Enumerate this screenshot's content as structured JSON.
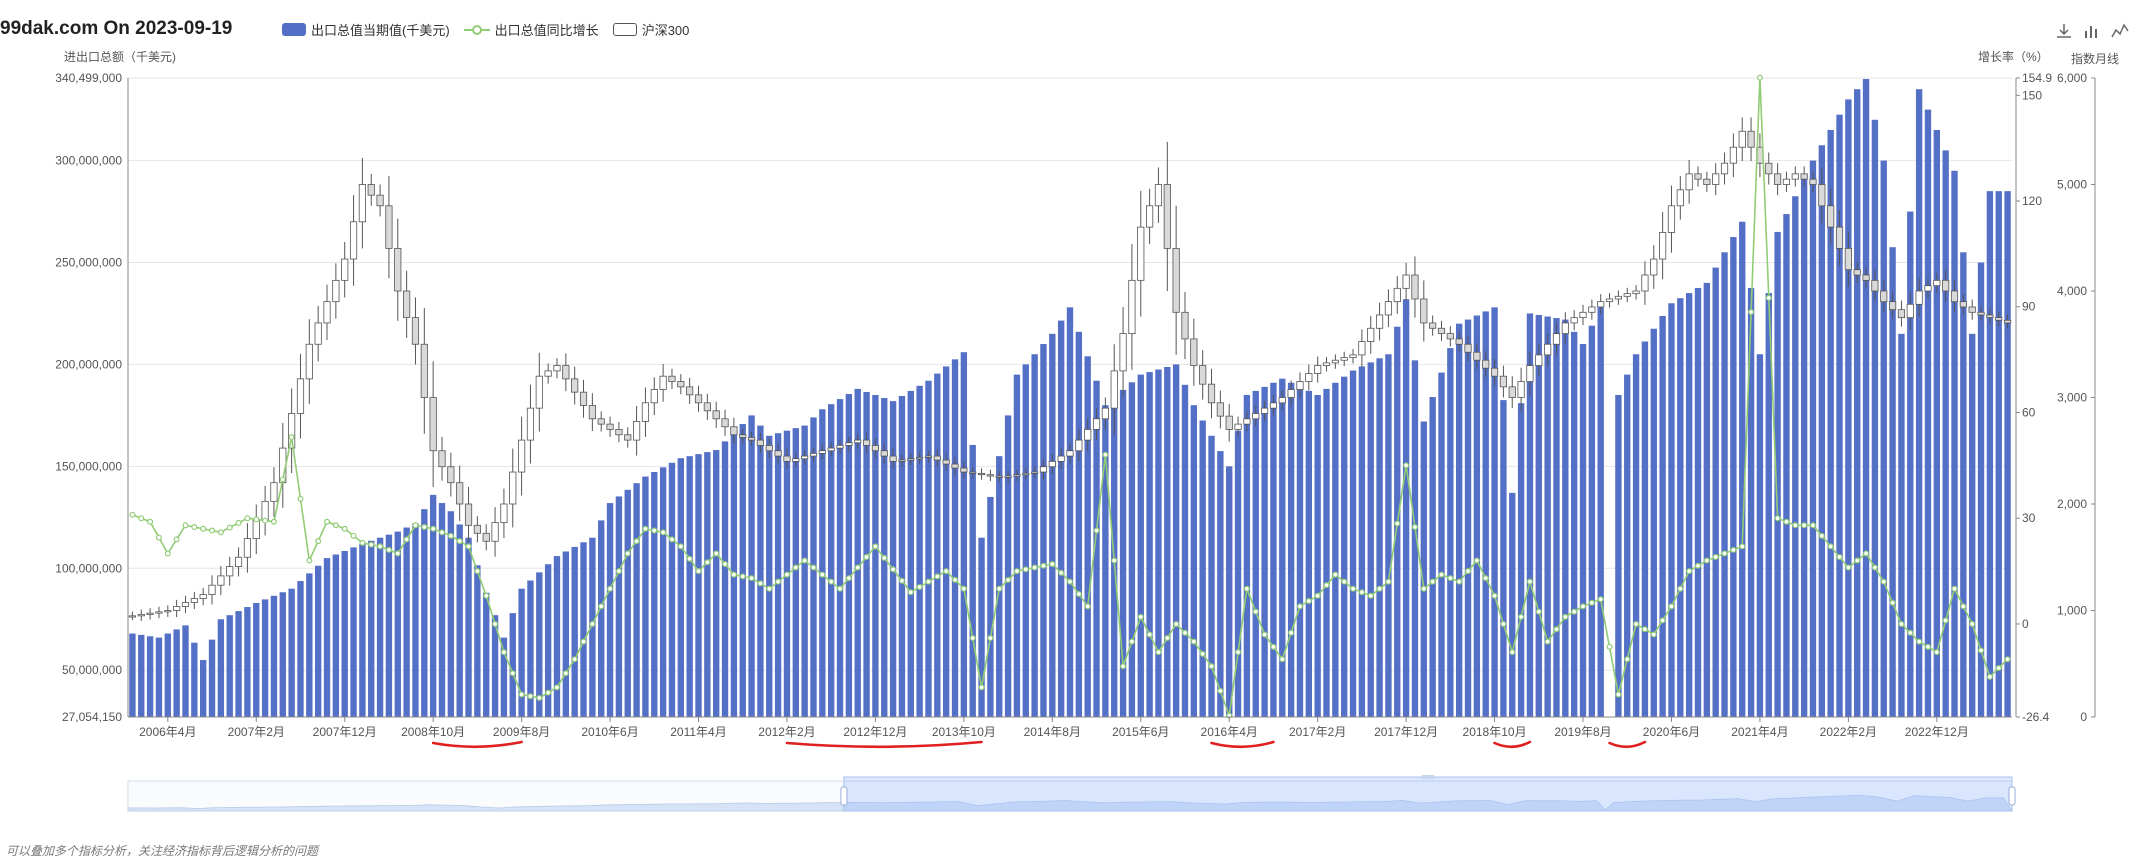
{
  "header": {
    "title": "99dak.com On 2023-09-19",
    "legend": [
      {
        "label": "出口总值当期值(千美元)",
        "color": "#5470c6",
        "kind": "bar"
      },
      {
        "label": "出口总值同比增长",
        "color": "#91cc75",
        "kind": "line"
      },
      {
        "label": "沪深300",
        "color": "#555555",
        "kind": "candle"
      }
    ],
    "toolbox": [
      "download-icon",
      "bar-chart-icon",
      "line-chart-icon"
    ],
    "right_label": "指数月线"
  },
  "footnote": "可以叠加多个指标分析，关注经济指标背后逻辑分析的问题",
  "colors": {
    "bar": "#5470c6",
    "line": "#91cc75",
    "candle": "#555555",
    "annotation": "#e02020",
    "grid": "#e6e6e6"
  },
  "chart_data": {
    "type": "bar",
    "y_left": {
      "label": "进出口总额（千美元)",
      "min": 27054150,
      "max": 340499000,
      "ticks": [
        "27,054,150",
        "50,000,000",
        "100,000,000",
        "150,000,000",
        "200,000,000",
        "250,000,000",
        "300,000,000",
        "340,499,000"
      ]
    },
    "y_mid": {
      "label": "增长率（%）",
      "min": -26.4,
      "max": 154.9,
      "ticks": [
        "-26.4",
        "0",
        "30",
        "60",
        "90",
        "120",
        "150",
        "154.9"
      ]
    },
    "y_right": {
      "min": 0,
      "max": 6000,
      "ticks": [
        "0",
        "1,000",
        "2,000",
        "3,000",
        "4,000",
        "5,000",
        "6,000"
      ]
    },
    "x_ticks": [
      "2006年4月",
      "2007年2月",
      "2007年12月",
      "2008年10月",
      "2009年8月",
      "2010年6月",
      "2011年4月",
      "2012年2月",
      "2012年12月",
      "2013年10月",
      "2014年8月",
      "2015年6月",
      "2016年4月",
      "2017年2月",
      "2017年12月",
      "2018年10月",
      "2019年8月",
      "2020年6月",
      "2021年4月",
      "2022年2月",
      "2022年12月"
    ],
    "x_tick_positions": [
      4,
      14,
      24,
      34,
      44,
      54,
      64,
      74,
      84,
      94,
      104,
      114,
      124,
      134,
      144,
      154,
      164,
      174,
      184,
      194,
      204
    ],
    "n_points": 213,
    "bar_keypoints": [
      [
        0,
        68
      ],
      [
        3,
        66
      ],
      [
        6,
        72
      ],
      [
        8,
        55
      ],
      [
        10,
        75
      ],
      [
        14,
        83
      ],
      [
        18,
        90
      ],
      [
        22,
        105
      ],
      [
        26,
        112
      ],
      [
        30,
        118
      ],
      [
        32,
        122
      ],
      [
        34,
        136
      ],
      [
        36,
        128
      ],
      [
        38,
        115
      ],
      [
        40,
        88
      ],
      [
        42,
        66
      ],
      [
        44,
        90
      ],
      [
        48,
        106
      ],
      [
        52,
        115
      ],
      [
        54,
        132
      ],
      [
        58,
        145
      ],
      [
        62,
        154
      ],
      [
        66,
        158
      ],
      [
        70,
        175
      ],
      [
        72,
        165
      ],
      [
        76,
        170
      ],
      [
        78,
        178
      ],
      [
        82,
        188
      ],
      [
        86,
        182
      ],
      [
        90,
        192
      ],
      [
        94,
        206
      ],
      [
        96,
        115
      ],
      [
        100,
        195
      ],
      [
        104,
        215
      ],
      [
        106,
        228
      ],
      [
        110,
        180
      ],
      [
        114,
        195
      ],
      [
        118,
        200
      ],
      [
        120,
        180
      ],
      [
        124,
        150
      ],
      [
        126,
        185
      ],
      [
        130,
        193
      ],
      [
        134,
        185
      ],
      [
        138,
        197
      ],
      [
        142,
        205
      ],
      [
        144,
        232
      ],
      [
        146,
        172
      ],
      [
        150,
        220
      ],
      [
        154,
        228
      ],
      [
        156,
        137
      ],
      [
        158,
        225
      ],
      [
        162,
        222
      ],
      [
        164,
        210
      ],
      [
        166,
        228
      ],
      [
        167,
        27
      ],
      [
        168,
        185
      ],
      [
        170,
        205
      ],
      [
        174,
        230
      ],
      [
        178,
        240
      ],
      [
        182,
        270
      ],
      [
        184,
        205
      ],
      [
        186,
        265
      ],
      [
        190,
        300
      ],
      [
        194,
        330
      ],
      [
        196,
        340
      ],
      [
        198,
        300
      ],
      [
        200,
        215
      ],
      [
        202,
        335
      ],
      [
        206,
        295
      ],
      [
        208,
        215
      ],
      [
        210,
        285
      ],
      [
        212,
        285
      ]
    ],
    "growth_keypoints": [
      [
        0,
        31
      ],
      [
        2,
        29
      ],
      [
        4,
        20
      ],
      [
        6,
        28
      ],
      [
        8,
        27
      ],
      [
        10,
        26
      ],
      [
        13,
        30
      ],
      [
        16,
        29
      ],
      [
        18,
        53
      ],
      [
        20,
        18
      ],
      [
        22,
        29
      ],
      [
        24,
        27
      ],
      [
        26,
        23
      ],
      [
        28,
        22
      ],
      [
        30,
        20
      ],
      [
        32,
        28
      ],
      [
        34,
        27
      ],
      [
        36,
        25
      ],
      [
        38,
        22
      ],
      [
        40,
        8
      ],
      [
        42,
        -8
      ],
      [
        44,
        -20
      ],
      [
        46,
        -21
      ],
      [
        48,
        -18
      ],
      [
        50,
        -10
      ],
      [
        52,
        0
      ],
      [
        54,
        10
      ],
      [
        56,
        20
      ],
      [
        58,
        27
      ],
      [
        60,
        26
      ],
      [
        62,
        22
      ],
      [
        64,
        15
      ],
      [
        66,
        20
      ],
      [
        68,
        14
      ],
      [
        70,
        13
      ],
      [
        72,
        10
      ],
      [
        76,
        18
      ],
      [
        80,
        10
      ],
      [
        84,
        22
      ],
      [
        88,
        9
      ],
      [
        92,
        15
      ],
      [
        94,
        10
      ],
      [
        96,
        -18
      ],
      [
        98,
        10
      ],
      [
        100,
        15
      ],
      [
        104,
        17
      ],
      [
        106,
        12
      ],
      [
        108,
        5
      ],
      [
        110,
        48
      ],
      [
        112,
        -12
      ],
      [
        114,
        2
      ],
      [
        116,
        -8
      ],
      [
        118,
        0
      ],
      [
        120,
        -5
      ],
      [
        122,
        -12
      ],
      [
        124,
        -26
      ],
      [
        126,
        10
      ],
      [
        128,
        -3
      ],
      [
        130,
        -10
      ],
      [
        132,
        5
      ],
      [
        134,
        8
      ],
      [
        136,
        14
      ],
      [
        138,
        10
      ],
      [
        140,
        8
      ],
      [
        142,
        12
      ],
      [
        144,
        45
      ],
      [
        146,
        10
      ],
      [
        148,
        14
      ],
      [
        150,
        12
      ],
      [
        152,
        18
      ],
      [
        154,
        8
      ],
      [
        156,
        -8
      ],
      [
        158,
        12
      ],
      [
        160,
        -5
      ],
      [
        162,
        2
      ],
      [
        164,
        5
      ],
      [
        166,
        7
      ],
      [
        168,
        -20
      ],
      [
        170,
        0
      ],
      [
        172,
        -3
      ],
      [
        174,
        5
      ],
      [
        176,
        15
      ],
      [
        178,
        18
      ],
      [
        180,
        20
      ],
      [
        182,
        22
      ],
      [
        184,
        155
      ],
      [
        186,
        30
      ],
      [
        188,
        28
      ],
      [
        190,
        28
      ],
      [
        192,
        22
      ],
      [
        194,
        16
      ],
      [
        196,
        20
      ],
      [
        198,
        12
      ],
      [
        200,
        0
      ],
      [
        202,
        -5
      ],
      [
        204,
        -8
      ],
      [
        206,
        10
      ],
      [
        208,
        0
      ],
      [
        210,
        -15
      ],
      [
        212,
        -10
      ]
    ],
    "index_keypoints": [
      [
        0,
        950
      ],
      [
        4,
        1000
      ],
      [
        8,
        1150
      ],
      [
        12,
        1500
      ],
      [
        16,
        2200
      ],
      [
        20,
        3500
      ],
      [
        24,
        4300
      ],
      [
        26,
        5000
      ],
      [
        28,
        4800
      ],
      [
        30,
        4000
      ],
      [
        32,
        3500
      ],
      [
        34,
        2500
      ],
      [
        36,
        2200
      ],
      [
        38,
        1800
      ],
      [
        40,
        1650
      ],
      [
        42,
        2000
      ],
      [
        44,
        2600
      ],
      [
        46,
        3200
      ],
      [
        48,
        3300
      ],
      [
        50,
        3050
      ],
      [
        52,
        2800
      ],
      [
        54,
        2700
      ],
      [
        56,
        2600
      ],
      [
        58,
        2950
      ],
      [
        60,
        3200
      ],
      [
        62,
        3100
      ],
      [
        64,
        2950
      ],
      [
        66,
        2800
      ],
      [
        68,
        2650
      ],
      [
        70,
        2600
      ],
      [
        72,
        2500
      ],
      [
        74,
        2400
      ],
      [
        78,
        2500
      ],
      [
        82,
        2600
      ],
      [
        86,
        2400
      ],
      [
        90,
        2450
      ],
      [
        94,
        2300
      ],
      [
        98,
        2250
      ],
      [
        102,
        2300
      ],
      [
        106,
        2500
      ],
      [
        110,
        2900
      ],
      [
        112,
        3600
      ],
      [
        114,
        4600
      ],
      [
        116,
        5000
      ],
      [
        118,
        3800
      ],
      [
        120,
        3300
      ],
      [
        122,
        2950
      ],
      [
        124,
        2700
      ],
      [
        126,
        2800
      ],
      [
        130,
        3000
      ],
      [
        134,
        3300
      ],
      [
        138,
        3400
      ],
      [
        142,
        3900
      ],
      [
        144,
        4150
      ],
      [
        146,
        3700
      ],
      [
        150,
        3500
      ],
      [
        154,
        3200
      ],
      [
        156,
        3000
      ],
      [
        158,
        3300
      ],
      [
        162,
        3700
      ],
      [
        166,
        3900
      ],
      [
        168,
        3950
      ],
      [
        170,
        4000
      ],
      [
        172,
        4300
      ],
      [
        174,
        4800
      ],
      [
        176,
        5100
      ],
      [
        178,
        5000
      ],
      [
        180,
        5200
      ],
      [
        182,
        5500
      ],
      [
        184,
        5200
      ],
      [
        186,
        5000
      ],
      [
        188,
        5100
      ],
      [
        190,
        5000
      ],
      [
        192,
        4600
      ],
      [
        194,
        4200
      ],
      [
        196,
        4100
      ],
      [
        198,
        3900
      ],
      [
        200,
        3750
      ],
      [
        202,
        4000
      ],
      [
        204,
        4100
      ],
      [
        206,
        3900
      ],
      [
        208,
        3800
      ],
      [
        210,
        3750
      ],
      [
        212,
        3700
      ]
    ],
    "annotations": [
      {
        "from": 34,
        "to": 44
      },
      {
        "from": 74,
        "to": 96
      },
      {
        "from": 122,
        "to": 129
      },
      {
        "from": 154,
        "to": 158
      },
      {
        "from": 167,
        "to": 171
      }
    ],
    "zoom": {
      "start_percent": 38,
      "end_percent": 100
    }
  }
}
